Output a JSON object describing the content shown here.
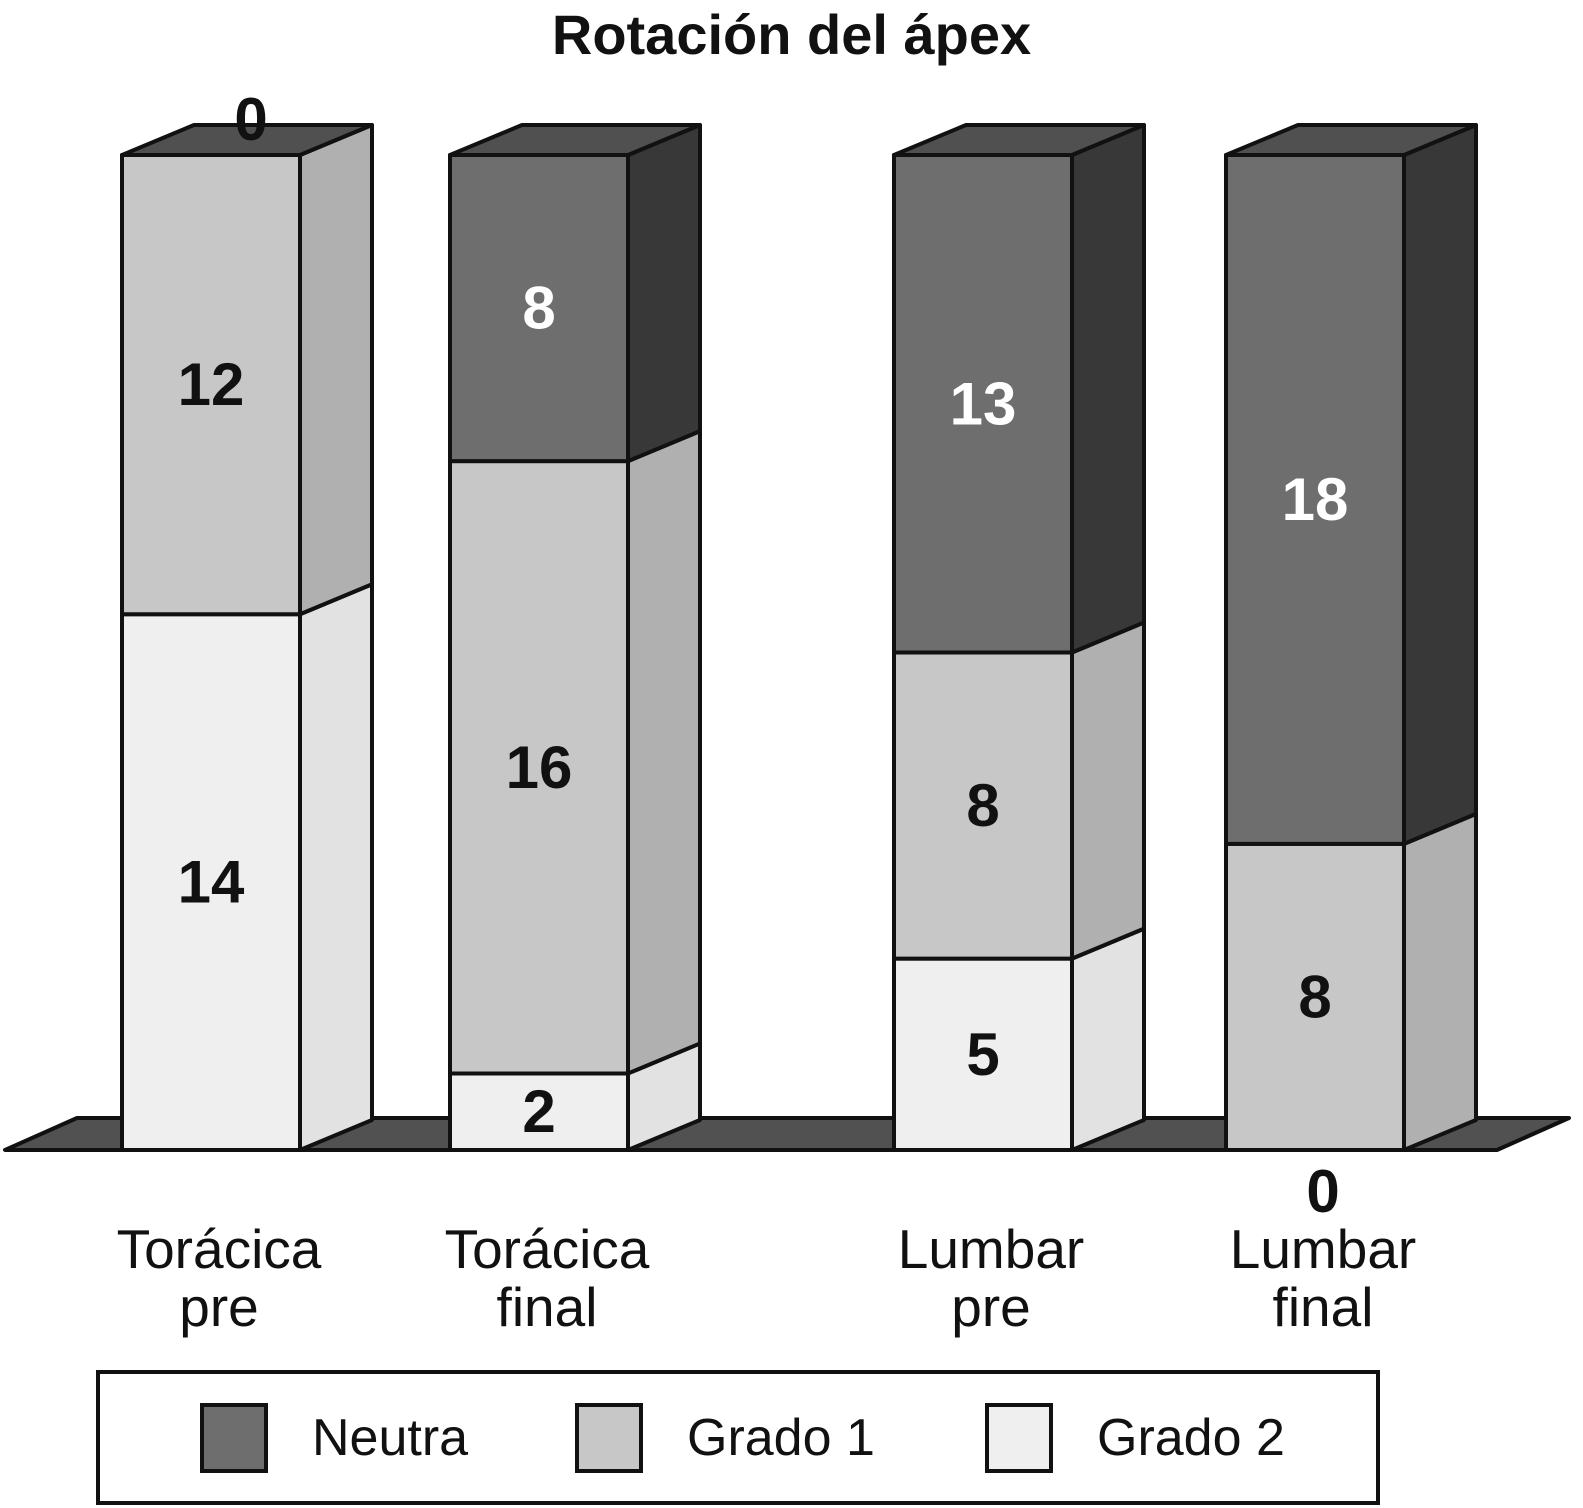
{
  "title": "Rotación del ápex",
  "chart_data": {
    "type": "bar",
    "subtype": "3d-stacked-column",
    "title": "Rotación del ápex",
    "stack_total_units": 26,
    "categories": [
      "Torácica pre",
      "Torácica final",
      "Lumbar pre",
      "Lumbar final"
    ],
    "category_lines": [
      [
        "Torácica",
        "pre"
      ],
      [
        "Torácica",
        "final"
      ],
      [
        "Lumbar",
        "pre"
      ],
      [
        "Lumbar",
        "final"
      ]
    ],
    "series": [
      {
        "name": "Neutra",
        "values": [
          0,
          8,
          13,
          18
        ],
        "color": "#6e6e6e",
        "side_color": "#383838",
        "label_color": "#ffffff"
      },
      {
        "name": "Grado 1",
        "values": [
          12,
          16,
          8,
          8
        ],
        "color": "#c7c7c7",
        "side_color": "#b0b0b0",
        "label_color": "#111111"
      },
      {
        "name": "Grado 2",
        "values": [
          14,
          2,
          5,
          0
        ],
        "color": "#efefef",
        "side_color": "#e2e2e2",
        "label_color": "#111111"
      }
    ],
    "zero_label_positions": {
      "Torácica pre": "above",
      "Lumbar final": "below"
    },
    "legend": {
      "position": "bottom",
      "entries": [
        "Neutra",
        "Grado 1",
        "Grado 2"
      ]
    },
    "axis": {
      "y_axis_visible": false,
      "x_axis_visible": false,
      "gridlines": false
    },
    "top_face_color": "#505050",
    "floor_color": "#515151",
    "outline_color": "#111111",
    "background_color": "#ffffff"
  }
}
